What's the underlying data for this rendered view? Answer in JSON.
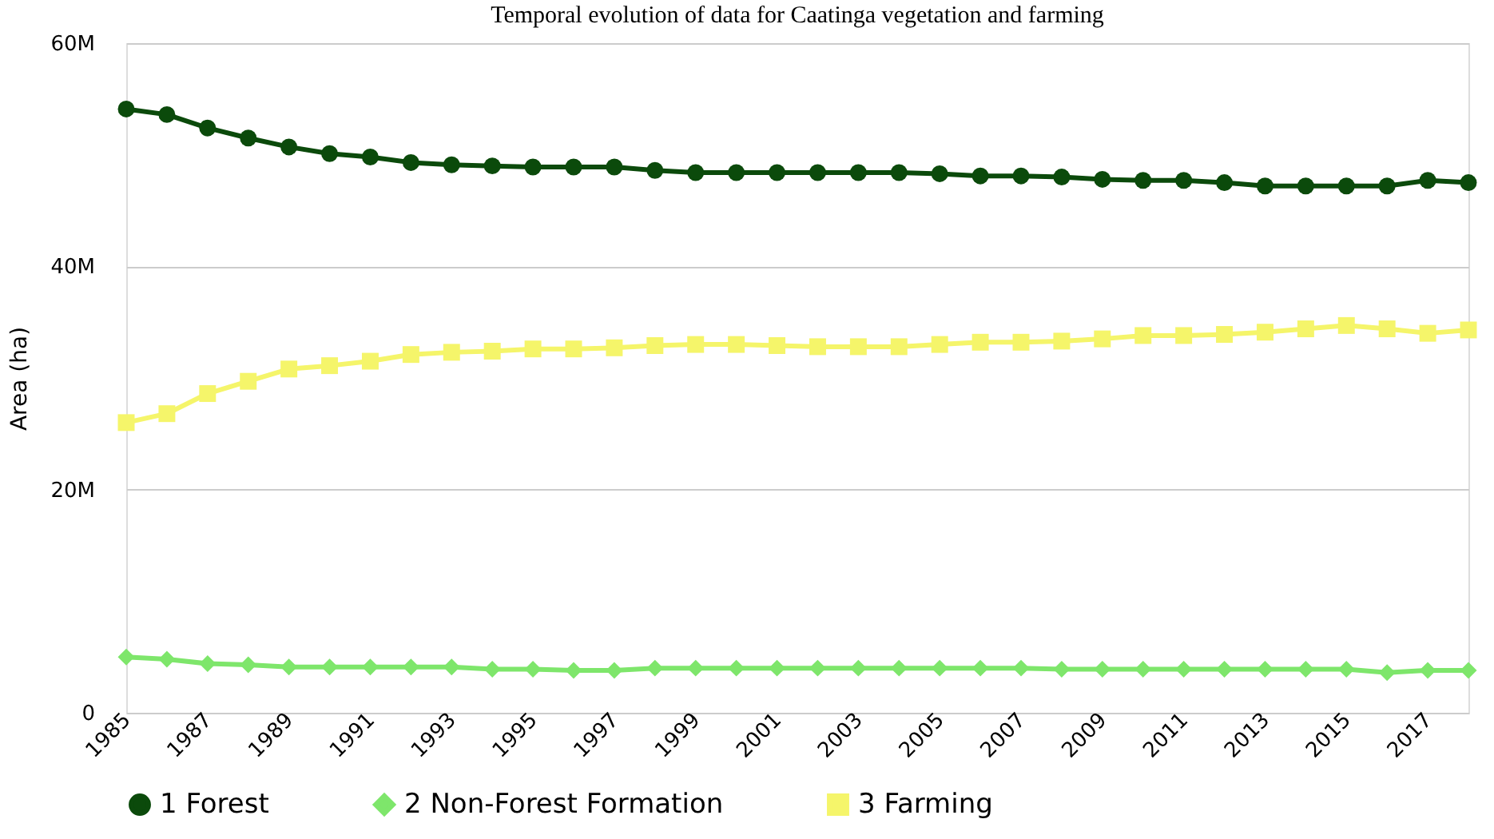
{
  "chart_data": {
    "type": "line",
    "title": "Temporal evolution of data for Caatinga vegetation and farming",
    "ylabel": "Area (ha)",
    "x": [
      1985,
      1986,
      1987,
      1988,
      1989,
      1990,
      1991,
      1992,
      1993,
      1994,
      1995,
      1996,
      1997,
      1998,
      1999,
      2000,
      2001,
      2002,
      2003,
      2004,
      2005,
      2006,
      2007,
      2008,
      2009,
      2010,
      2011,
      2012,
      2013,
      2014,
      2015,
      2016,
      2017,
      2018
    ],
    "xlim": [
      1985,
      2018
    ],
    "xticks": [
      1985,
      1987,
      1989,
      1991,
      1993,
      1995,
      1997,
      1999,
      2001,
      2003,
      2005,
      2007,
      2009,
      2011,
      2013,
      2015,
      2017
    ],
    "ylim": [
      0,
      60000000
    ],
    "yticks": [
      {
        "value": 0,
        "label": "0"
      },
      {
        "value": 20000000,
        "label": "20M"
      },
      {
        "value": 40000000,
        "label": "40M"
      },
      {
        "value": 60000000,
        "label": "60M"
      }
    ],
    "grid": "y",
    "legend": "bottom",
    "series": [
      {
        "name": "1 Forest",
        "color": "#0b4a0b",
        "marker": "circle",
        "values": [
          54100000,
          53600000,
          52400000,
          51500000,
          50700000,
          50100000,
          49800000,
          49300000,
          49100000,
          49000000,
          48900000,
          48900000,
          48900000,
          48600000,
          48400000,
          48400000,
          48400000,
          48400000,
          48400000,
          48400000,
          48300000,
          48100000,
          48100000,
          48000000,
          47800000,
          47700000,
          47700000,
          47500000,
          47200000,
          47200000,
          47200000,
          47200000,
          47700000,
          47500000
        ]
      },
      {
        "name": "2 Non-Forest Formation",
        "color": "#7ee66b",
        "marker": "diamond",
        "values": [
          5000000,
          4800000,
          4400000,
          4300000,
          4100000,
          4100000,
          4100000,
          4100000,
          4100000,
          3900000,
          3900000,
          3800000,
          3800000,
          4000000,
          4000000,
          4000000,
          4000000,
          4000000,
          4000000,
          4000000,
          4000000,
          4000000,
          4000000,
          3900000,
          3900000,
          3900000,
          3900000,
          3900000,
          3900000,
          3900000,
          3900000,
          3600000,
          3800000,
          3800000
        ]
      },
      {
        "name": "3 Farming",
        "color": "#f5f56a",
        "marker": "square",
        "values": [
          26000000,
          26800000,
          28600000,
          29700000,
          30800000,
          31100000,
          31500000,
          32100000,
          32300000,
          32400000,
          32600000,
          32600000,
          32700000,
          32900000,
          33000000,
          33000000,
          32900000,
          32800000,
          32800000,
          32800000,
          33000000,
          33200000,
          33200000,
          33300000,
          33500000,
          33800000,
          33800000,
          33900000,
          34100000,
          34400000,
          34700000,
          34400000,
          34000000,
          34300000
        ]
      }
    ]
  }
}
